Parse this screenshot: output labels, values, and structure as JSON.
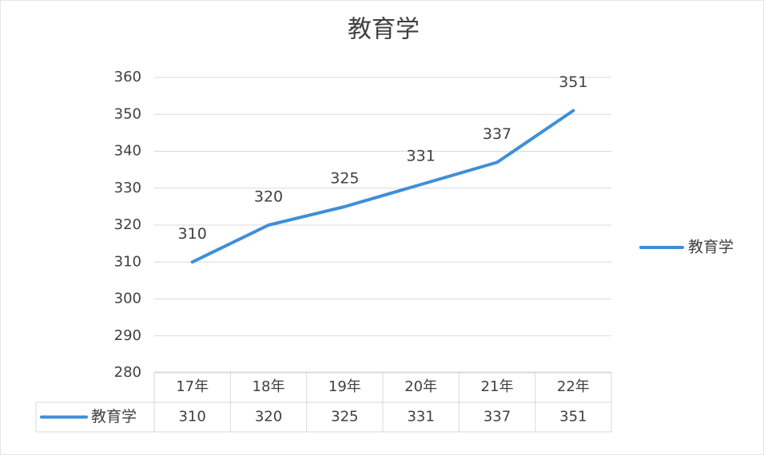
{
  "chart_data": {
    "type": "line",
    "title": "教育学",
    "categories": [
      "17年",
      "18年",
      "19年",
      "20年",
      "21年",
      "22年"
    ],
    "series": [
      {
        "name": "教育学",
        "color": "#3f8fd8",
        "values": [
          310,
          320,
          325,
          331,
          337,
          351
        ]
      }
    ],
    "ylim": [
      280,
      360
    ],
    "yticks": [
      280,
      290,
      300,
      310,
      320,
      330,
      340,
      350,
      360
    ],
    "grid": true,
    "legend": "right",
    "data_table": true
  }
}
